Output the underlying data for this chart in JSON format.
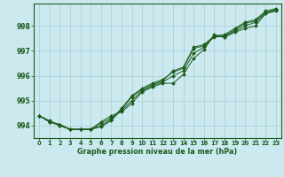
{
  "background_color": "#cce9f0",
  "grid_color": "#b0d0d8",
  "line_color": "#1a5c1a",
  "marker_color": "#1a5c1a",
  "xlabel": "Graphe pression niveau de la mer (hPa)",
  "ylim": [
    993.5,
    998.9
  ],
  "yticks": [
    994,
    995,
    996,
    997,
    998
  ],
  "xlim": [
    -0.5,
    23.5
  ],
  "xticks": [
    0,
    1,
    2,
    3,
    4,
    5,
    6,
    7,
    8,
    9,
    10,
    11,
    12,
    13,
    14,
    15,
    16,
    17,
    18,
    19,
    20,
    21,
    22,
    23
  ],
  "series": [
    [
      994.4,
      994.15,
      994.05,
      993.85,
      993.85,
      993.85,
      994.15,
      994.4,
      994.55,
      994.9,
      995.35,
      995.55,
      995.7,
      995.7,
      996.05,
      996.7,
      997.05,
      997.65,
      997.55,
      997.75,
      997.9,
      998.0,
      998.5,
      998.6
    ],
    [
      994.4,
      994.15,
      994.0,
      993.85,
      993.85,
      993.85,
      994.0,
      994.25,
      994.7,
      995.2,
      995.5,
      995.7,
      995.85,
      996.15,
      996.3,
      997.1,
      997.2,
      997.55,
      997.6,
      997.85,
      998.1,
      998.2,
      998.55,
      998.65
    ],
    [
      994.4,
      994.15,
      994.05,
      993.85,
      993.85,
      993.85,
      994.1,
      994.3,
      994.6,
      995.0,
      995.4,
      995.6,
      995.75,
      996.0,
      996.2,
      996.9,
      997.15,
      997.6,
      997.55,
      997.8,
      998.0,
      998.15,
      998.5,
      998.65
    ],
    [
      994.4,
      994.2,
      994.0,
      993.85,
      993.85,
      993.85,
      993.95,
      994.2,
      994.65,
      995.15,
      995.45,
      995.65,
      995.8,
      996.2,
      996.35,
      997.15,
      997.25,
      997.6,
      997.65,
      997.9,
      998.15,
      998.25,
      998.6,
      998.7
    ]
  ]
}
